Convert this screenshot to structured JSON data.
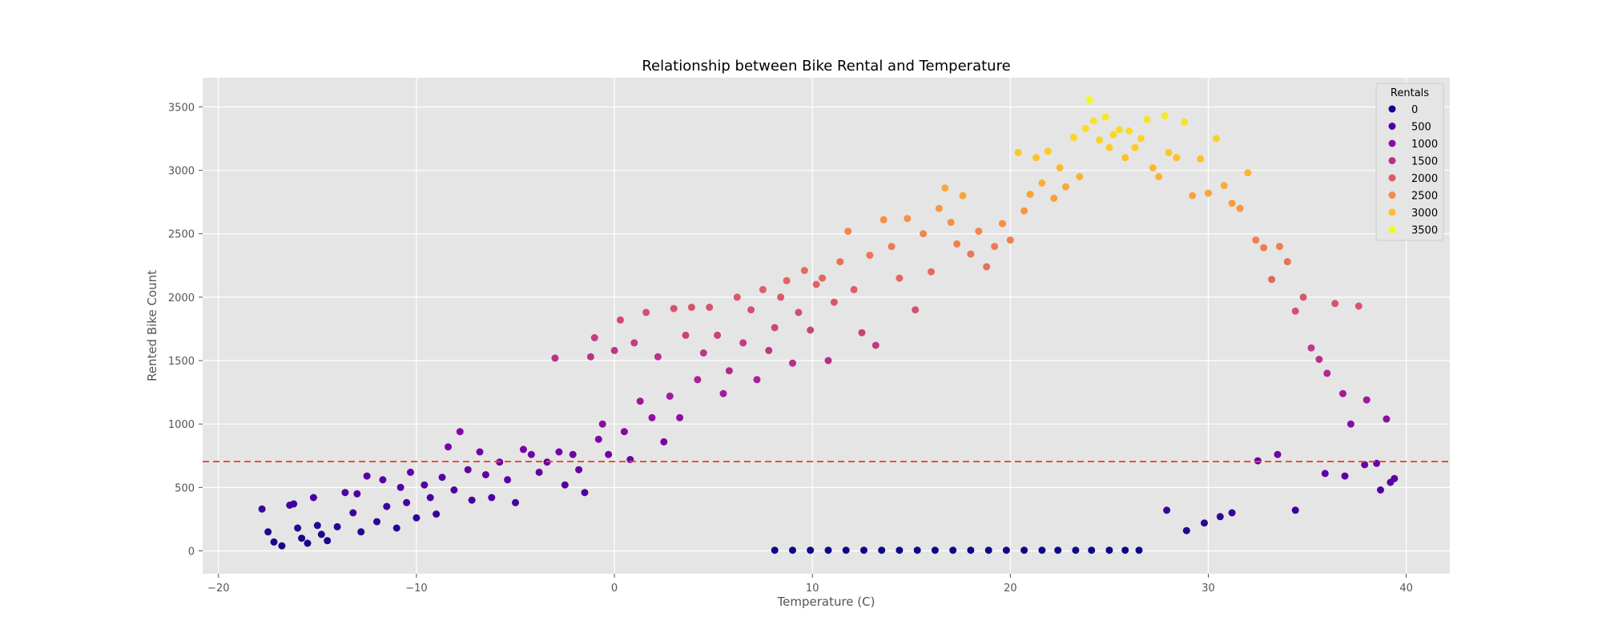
{
  "chart_data": {
    "type": "scatter",
    "title": "Relationship between Bike Rental and Temperature",
    "xlabel": "Temperature (C)",
    "ylabel": "Rented Bike Count",
    "xlim": [
      -20.8,
      42.2
    ],
    "ylim": [
      -180,
      3730
    ],
    "x_ticks": [
      -20,
      -10,
      0,
      10,
      20,
      30,
      40
    ],
    "x_tick_labels": [
      "−20",
      "−10",
      "0",
      "10",
      "20",
      "30",
      "40"
    ],
    "y_ticks": [
      0,
      500,
      1000,
      1500,
      2000,
      2500,
      3000,
      3500
    ],
    "y_tick_labels": [
      "0",
      "500",
      "1000",
      "1500",
      "2000",
      "2500",
      "3000",
      "3500"
    ],
    "grid": true,
    "colormap": "plasma",
    "color_range": [
      0,
      3556
    ],
    "reference_line": {
      "y": 704,
      "color": "#e24a33",
      "style": "dashed"
    },
    "legend": {
      "title": "Rentals",
      "position": "top-right",
      "entries": [
        {
          "label": "0",
          "color": "#0d0887"
        },
        {
          "label": "500",
          "color": "#4c02a1"
        },
        {
          "label": "1000",
          "color": "#8b0aa5"
        },
        {
          "label": "1500",
          "color": "#b83289"
        },
        {
          "label": "2000",
          "color": "#db5c68"
        },
        {
          "label": "2500",
          "color": "#f48849"
        },
        {
          "label": "3000",
          "color": "#febd2a"
        },
        {
          "label": "3500",
          "color": "#f0f921"
        }
      ]
    },
    "series": [
      {
        "points": [
          [
            -17.8,
            330
          ],
          [
            -17.5,
            150
          ],
          [
            -17.2,
            70
          ],
          [
            -16.8,
            40
          ],
          [
            -16.4,
            360
          ],
          [
            -16.2,
            370
          ],
          [
            -16.0,
            180
          ],
          [
            -15.8,
            100
          ],
          [
            -15.5,
            60
          ],
          [
            -15.2,
            420
          ],
          [
            -15.0,
            200
          ],
          [
            -14.8,
            130
          ],
          [
            -14.5,
            80
          ],
          [
            -14.0,
            190
          ],
          [
            -13.6,
            460
          ],
          [
            -13.2,
            300
          ],
          [
            -13.0,
            450
          ],
          [
            -12.8,
            150
          ],
          [
            -12.5,
            590
          ],
          [
            -12.0,
            230
          ],
          [
            -11.7,
            560
          ],
          [
            -11.5,
            350
          ],
          [
            -11.0,
            180
          ],
          [
            -10.8,
            500
          ],
          [
            -10.5,
            380
          ],
          [
            -10.3,
            620
          ],
          [
            -10.0,
            260
          ],
          [
            -9.6,
            520
          ],
          [
            -9.3,
            420
          ],
          [
            -9.0,
            290
          ],
          [
            -8.7,
            580
          ],
          [
            -8.4,
            820
          ],
          [
            -8.1,
            480
          ],
          [
            -7.8,
            940
          ],
          [
            -7.4,
            640
          ],
          [
            -7.2,
            400
          ],
          [
            -6.8,
            780
          ],
          [
            -6.5,
            600
          ],
          [
            -6.2,
            420
          ],
          [
            -5.8,
            700
          ],
          [
            -5.4,
            560
          ],
          [
            -5.0,
            380
          ],
          [
            -4.6,
            800
          ],
          [
            -4.2,
            760
          ],
          [
            -3.8,
            620
          ],
          [
            -3.4,
            700
          ],
          [
            -3.0,
            1520
          ],
          [
            -2.8,
            780
          ],
          [
            -2.5,
            520
          ],
          [
            -2.1,
            760
          ],
          [
            -1.8,
            640
          ],
          [
            -1.5,
            460
          ],
          [
            -1.2,
            1530
          ],
          [
            -1.0,
            1680
          ],
          [
            -0.8,
            880
          ],
          [
            -0.6,
            1000
          ],
          [
            -0.3,
            760
          ],
          [
            0.0,
            1580
          ],
          [
            0.3,
            1820
          ],
          [
            0.5,
            940
          ],
          [
            0.8,
            720
          ],
          [
            1.0,
            1640
          ],
          [
            1.3,
            1180
          ],
          [
            1.6,
            1880
          ],
          [
            1.9,
            1050
          ],
          [
            2.2,
            1530
          ],
          [
            2.5,
            860
          ],
          [
            2.8,
            1220
          ],
          [
            3.0,
            1910
          ],
          [
            3.3,
            1050
          ],
          [
            3.6,
            1700
          ],
          [
            3.9,
            1920
          ],
          [
            4.2,
            1350
          ],
          [
            4.5,
            1560
          ],
          [
            4.8,
            1920
          ],
          [
            5.2,
            1700
          ],
          [
            5.5,
            1240
          ],
          [
            5.8,
            1420
          ],
          [
            6.2,
            2000
          ],
          [
            6.5,
            1640
          ],
          [
            6.9,
            1900
          ],
          [
            7.2,
            1350
          ],
          [
            7.5,
            2060
          ],
          [
            7.8,
            1580
          ],
          [
            8.1,
            1760
          ],
          [
            8.4,
            2000
          ],
          [
            8.7,
            2130
          ],
          [
            9.0,
            1480
          ],
          [
            9.3,
            1880
          ],
          [
            9.6,
            2210
          ],
          [
            9.9,
            1740
          ],
          [
            10.2,
            2100
          ],
          [
            10.5,
            2150
          ],
          [
            10.8,
            1500
          ],
          [
            11.1,
            1960
          ],
          [
            11.4,
            2280
          ],
          [
            11.8,
            2520
          ],
          [
            12.1,
            2060
          ],
          [
            12.5,
            1720
          ],
          [
            12.9,
            2330
          ],
          [
            13.2,
            1620
          ],
          [
            13.6,
            2610
          ],
          [
            14.0,
            2400
          ],
          [
            14.4,
            2150
          ],
          [
            14.8,
            2620
          ],
          [
            15.2,
            1900
          ],
          [
            15.6,
            2500
          ],
          [
            16.0,
            2200
          ],
          [
            16.4,
            2700
          ],
          [
            16.7,
            2860
          ],
          [
            17.0,
            2590
          ],
          [
            17.3,
            2420
          ],
          [
            17.6,
            2800
          ],
          [
            18.0,
            2340
          ],
          [
            18.4,
            2520
          ],
          [
            18.8,
            2240
          ],
          [
            19.2,
            2400
          ],
          [
            19.6,
            2580
          ],
          [
            20.0,
            2450
          ],
          [
            20.4,
            3140
          ],
          [
            20.7,
            2680
          ],
          [
            21.0,
            2810
          ],
          [
            21.3,
            3100
          ],
          [
            21.6,
            2900
          ],
          [
            21.9,
            3150
          ],
          [
            22.2,
            2780
          ],
          [
            22.5,
            3020
          ],
          [
            22.8,
            2870
          ],
          [
            23.2,
            3260
          ],
          [
            23.5,
            2950
          ],
          [
            23.8,
            3330
          ],
          [
            24.0,
            3556
          ],
          [
            24.2,
            3390
          ],
          [
            24.5,
            3240
          ],
          [
            24.8,
            3420
          ],
          [
            25.0,
            3180
          ],
          [
            25.2,
            3280
          ],
          [
            25.5,
            3320
          ],
          [
            25.8,
            3100
          ],
          [
            26.0,
            3310
          ],
          [
            26.3,
            3180
          ],
          [
            26.6,
            3250
          ],
          [
            26.9,
            3400
          ],
          [
            27.2,
            3020
          ],
          [
            27.5,
            2950
          ],
          [
            27.8,
            3430
          ],
          [
            28.0,
            3140
          ],
          [
            28.4,
            3100
          ],
          [
            28.8,
            3380
          ],
          [
            29.2,
            2800
          ],
          [
            29.6,
            3090
          ],
          [
            30.0,
            2820
          ],
          [
            30.4,
            3250
          ],
          [
            30.8,
            2880
          ],
          [
            31.2,
            2740
          ],
          [
            31.6,
            2700
          ],
          [
            32.0,
            2980
          ],
          [
            32.4,
            2450
          ],
          [
            32.8,
            2390
          ],
          [
            33.2,
            2140
          ],
          [
            33.6,
            2400
          ],
          [
            34.0,
            2280
          ],
          [
            34.4,
            1890
          ],
          [
            34.8,
            2000
          ],
          [
            35.2,
            1600
          ],
          [
            35.6,
            1510
          ],
          [
            36.0,
            1400
          ],
          [
            36.4,
            1950
          ],
          [
            36.8,
            1240
          ],
          [
            37.2,
            1000
          ],
          [
            37.6,
            1930
          ],
          [
            38.0,
            1190
          ],
          [
            38.5,
            690
          ],
          [
            39.0,
            1040
          ],
          [
            39.2,
            540
          ],
          [
            39.4,
            570
          ],
          [
            38.7,
            480
          ],
          [
            37.9,
            680
          ],
          [
            36.9,
            590
          ],
          [
            35.9,
            610
          ],
          [
            34.4,
            320
          ],
          [
            33.5,
            760
          ],
          [
            32.5,
            710
          ],
          [
            31.2,
            300
          ],
          [
            30.6,
            270
          ],
          [
            29.8,
            220
          ],
          [
            28.9,
            160
          ],
          [
            27.9,
            320
          ],
          [
            26.5,
            5
          ],
          [
            25.8,
            5
          ],
          [
            25.0,
            5
          ],
          [
            24.1,
            5
          ],
          [
            23.3,
            5
          ],
          [
            22.4,
            5
          ],
          [
            21.6,
            5
          ],
          [
            20.7,
            5
          ],
          [
            19.8,
            5
          ],
          [
            18.9,
            5
          ],
          [
            18.0,
            5
          ],
          [
            17.1,
            5
          ],
          [
            16.2,
            5
          ],
          [
            15.3,
            5
          ],
          [
            14.4,
            5
          ],
          [
            13.5,
            5
          ],
          [
            12.6,
            5
          ],
          [
            11.7,
            5
          ],
          [
            10.8,
            5
          ],
          [
            9.9,
            5
          ],
          [
            9.0,
            5
          ],
          [
            8.1,
            5
          ]
        ]
      }
    ]
  }
}
